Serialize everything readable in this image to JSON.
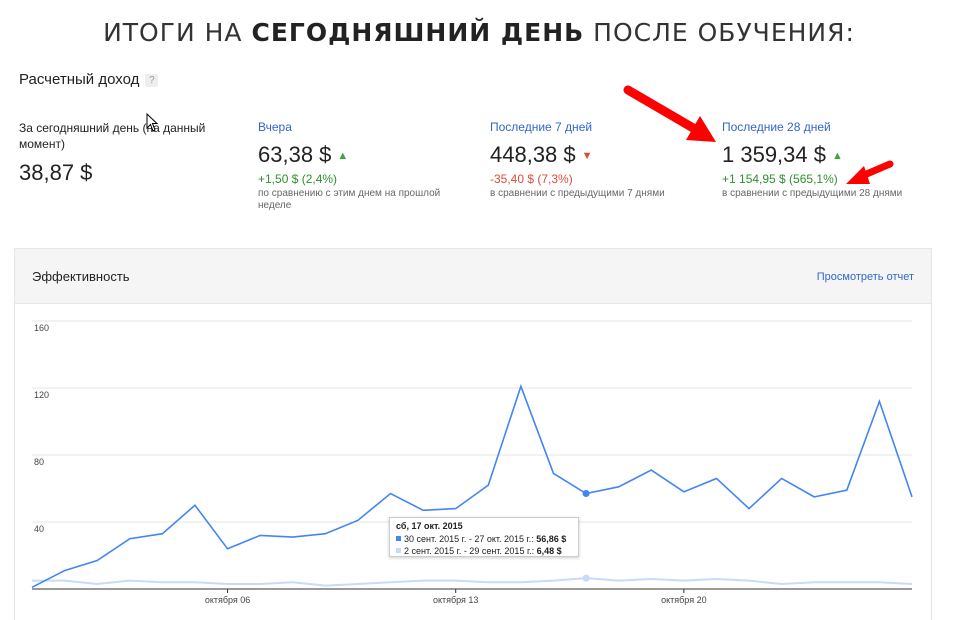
{
  "headline": {
    "part1": "ИТОГИ НА ",
    "part2": "СЕГОДНЯШНИЙ ДЕНЬ",
    "part3": " ПОСЛЕ ОБУЧЕНИЯ:"
  },
  "estimated_earnings": {
    "title": "Расчетный доход",
    "help": "?"
  },
  "metrics": [
    {
      "label": "За сегодняшний день (на данный момент)",
      "value": "38,87 $",
      "delta": "",
      "compare": ""
    },
    {
      "label": "Вчера",
      "value": "63,38 $",
      "trend": "up",
      "delta": "+1,50 $ (2,4%)",
      "compare": "по сравнению с этим днем на прошлой неделе"
    },
    {
      "label": "Последние 7 дней",
      "value": "448,38 $",
      "trend": "down",
      "delta": "-35,40 $ (7,3%)",
      "compare": "в сравнении с предыдущими 7 днями"
    },
    {
      "label": "Последние 28 дней",
      "value": "1 359,34 $",
      "trend": "up",
      "delta": "+1 154,95 $ (565,1%)",
      "compare": "в сравнении с предыдущими 28 днями"
    }
  ],
  "panel": {
    "title": "Эффективность",
    "link": "Просмотреть отчет"
  },
  "tooltip": {
    "title": "сб, 17 окт. 2015",
    "row1_label": "30 сент. 2015 г. - 27 окт. 2015 г.: ",
    "row1_value": "56,86 $",
    "row2_label": "2 сент. 2015 г. - 29 сент. 2015 г.: ",
    "row2_value": "6,48 $"
  },
  "colors": {
    "current": "#4285f4",
    "previous": "#c6dafc",
    "link": "#3366cc",
    "up": "#3ea63e",
    "down": "#dd4b39",
    "annotation": "#ff0000"
  },
  "chart_data": {
    "type": "line",
    "ylim": [
      0,
      160
    ],
    "yticks": [
      40,
      80,
      120,
      160
    ],
    "xtick_labels": [
      "октября 06",
      "октября 13",
      "октября 20"
    ],
    "xtick_index": [
      6,
      13,
      20
    ],
    "series": [
      {
        "name": "30 сент. 2015 г. - 27 окт. 2015 г.",
        "values": [
          1,
          11,
          17,
          30,
          33,
          50,
          24,
          32,
          31,
          33,
          41,
          57,
          47,
          48,
          62,
          121,
          69,
          57,
          61,
          71,
          58,
          66,
          48,
          66,
          55,
          59,
          112,
          55
        ]
      },
      {
        "name": "2 сент. 2015 г. - 29 сент. 2015 г.",
        "values": [
          5,
          5,
          3,
          5,
          4,
          4,
          3,
          3,
          4,
          2,
          3,
          4,
          5,
          5,
          4,
          4,
          5,
          6.48,
          5,
          6,
          5,
          6,
          5,
          3,
          4,
          4,
          4,
          3
        ]
      }
    ],
    "highlight_index": 17
  }
}
